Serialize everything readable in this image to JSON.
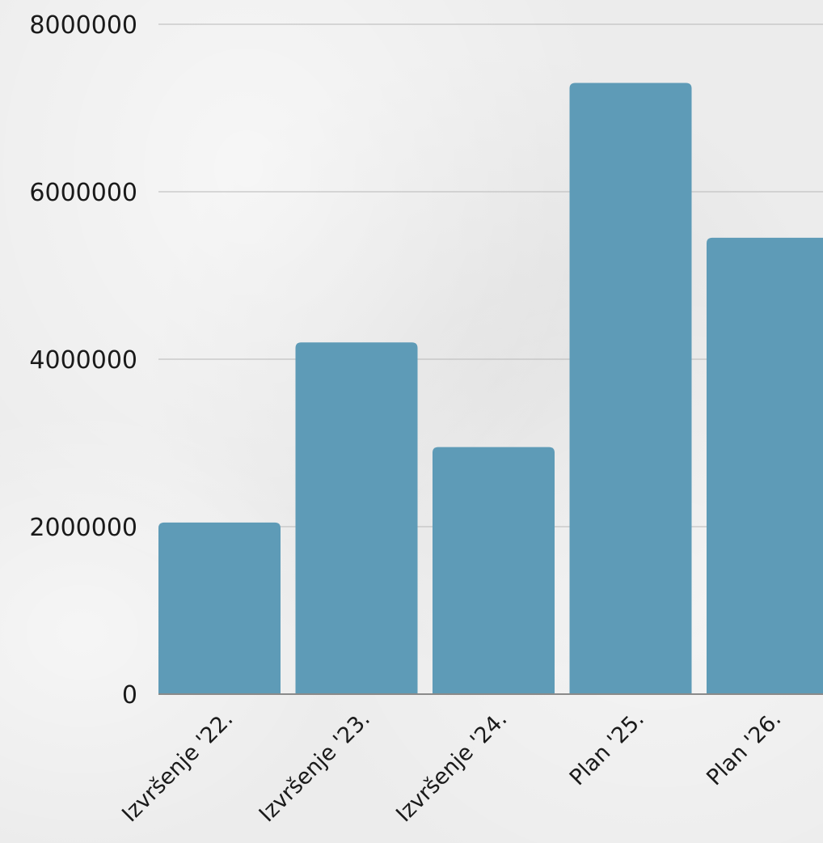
{
  "chart_data": {
    "type": "bar",
    "categories": [
      "Izvršenje '22.",
      "Izvršenje '23.",
      "Izvršenje '24.",
      "Plan '25.",
      "Plan '26."
    ],
    "values": [
      2050000,
      4200000,
      2950000,
      7300000,
      5450000
    ],
    "ylim": [
      0,
      8000000
    ],
    "yticks": [
      0,
      2000000,
      4000000,
      6000000,
      8000000
    ],
    "ytick_labels": [
      "0",
      "2000000",
      "4000000",
      "6000000",
      "8000000"
    ],
    "title": "",
    "xlabel": "",
    "ylabel": "",
    "grid": true,
    "legend": "none",
    "colors": {
      "bar": "#5e9bb7",
      "text": "#1a1a1a",
      "grid": "#b8b8b8"
    }
  }
}
